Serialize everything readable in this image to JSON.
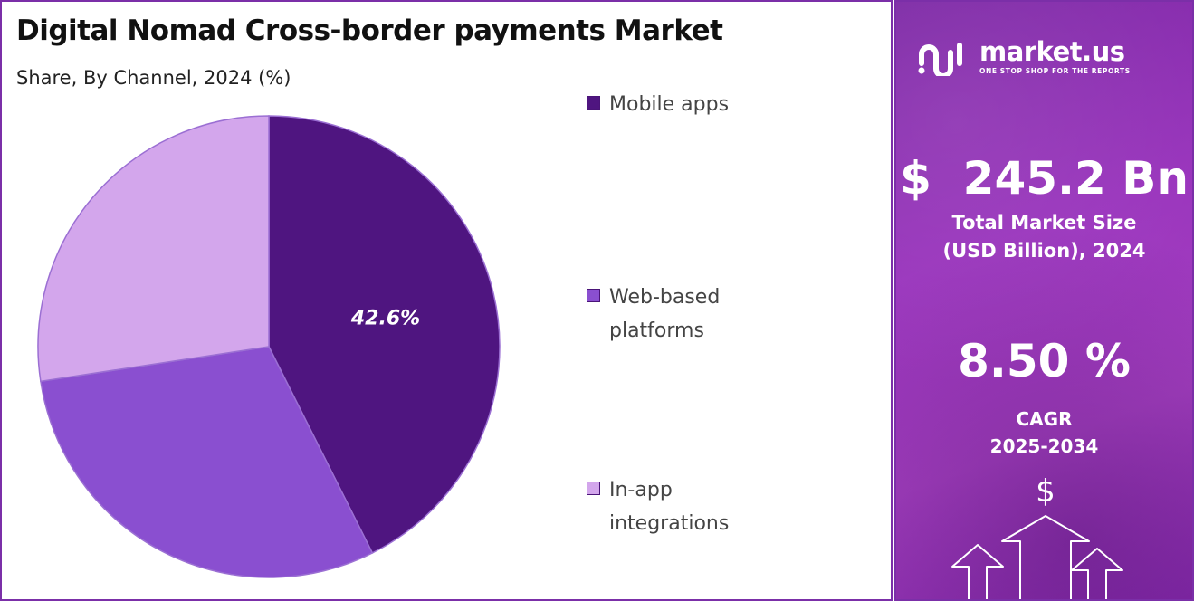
{
  "chart_data": {
    "type": "pie",
    "title": "Digital Nomad Cross-border payments Market",
    "subtitle": "Share, By Channel, 2024 (%)",
    "slices": [
      {
        "name": "Mobile apps",
        "value": 42.6,
        "color": "#4f1580",
        "label": "42.6%"
      },
      {
        "name": "Web-based platforms",
        "value": 30.0,
        "color": "#8a4fd0",
        "label": ""
      },
      {
        "name": "In-app integrations",
        "value": 27.4,
        "color": "#d3a6ec",
        "label": ""
      }
    ],
    "legend_position": "right",
    "outline_color": "#9b6fd3"
  },
  "sidebar": {
    "brand_name": "market.us",
    "brand_tagline": "ONE STOP SHOP FOR THE REPORTS",
    "market_size_value": "$  245.2 Bn",
    "market_size_label_line1": "Total Market Size",
    "market_size_label_line2": "(USD Billion), 2024",
    "cagr_value": "8.50 %",
    "cagr_label_line1": "CAGR",
    "cagr_label_line2": "2025-2034",
    "dollar_symbol": "$"
  },
  "colors": {
    "border": "#7b2fa8",
    "sidebar_accent": "#9a35bd"
  }
}
